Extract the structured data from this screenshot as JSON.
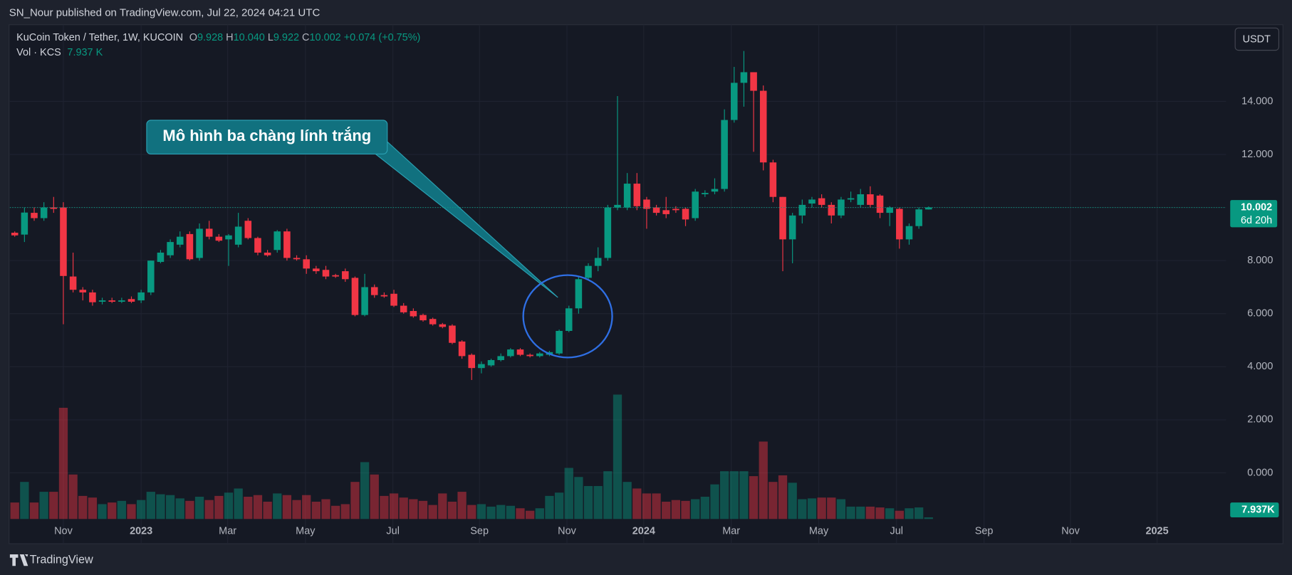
{
  "header": {
    "published": "SN_Nour published on TradingView.com, Jul 22, 2024 04:21 UTC"
  },
  "footer": {
    "brand": "TradingView"
  },
  "legend": {
    "symbol": "KuCoin Token / Tether, 1W, KUCOIN",
    "ohlc": [
      {
        "key": "O",
        "value": "9.928"
      },
      {
        "key": "H",
        "value": "10.040"
      },
      {
        "key": "L",
        "value": "9.922"
      },
      {
        "key": "C",
        "value": "10.002"
      }
    ],
    "change": "+0.074 (+0.75%)",
    "volume_name": "Vol · KCS",
    "volume_value": "7.937 K"
  },
  "currency_button": "USDT",
  "annotation": {
    "text": "Mô hình ba chàng lính trắng"
  },
  "chart_data": {
    "type": "candlestick",
    "up_color": "#089981",
    "down_color": "#f23645",
    "open": [
      9.05,
      8.98,
      9.8,
      9.6,
      10.0,
      10.0,
      7.4,
      6.9,
      6.8,
      6.45,
      6.5,
      6.45,
      6.55,
      6.5,
      6.8,
      7.95,
      8.2,
      8.6,
      9.0,
      8.1,
      9.2,
      8.9,
      8.8,
      8.6,
      9.5,
      8.85,
      8.3,
      8.4,
      9.1,
      8.1,
      8.05,
      7.7,
      7.65,
      7.45,
      7.6,
      7.35,
      5.95,
      7.0,
      6.7,
      6.75,
      6.3,
      6.1,
      5.95,
      5.8,
      5.6,
      5.55,
      4.95,
      4.45,
      3.95,
      4.05,
      4.25,
      4.4,
      4.65,
      4.45,
      4.4,
      4.45,
      4.5,
      5.35,
      6.2,
      7.35,
      7.8,
      8.1,
      10.0,
      10.0,
      10.9,
      10.3,
      10.0,
      9.9,
      9.95,
      9.95,
      9.6,
      10.5,
      10.6,
      10.7,
      13.3,
      14.7,
      15.1,
      14.4,
      11.7,
      10.4,
      8.8,
      9.7,
      10.15,
      10.35,
      10.1,
      9.7,
      10.3,
      10.1,
      10.5,
      10.45,
      9.8,
      9.95,
      8.8,
      9.3,
      9.928
    ],
    "high": [
      9.1,
      10.0,
      10.0,
      10.2,
      10.4,
      10.2,
      8.3,
      7.0,
      6.9,
      6.6,
      6.6,
      6.6,
      6.65,
      6.9,
      8.0,
      8.4,
      8.8,
      9.1,
      9.1,
      9.4,
      9.5,
      9.0,
      9.0,
      9.8,
      9.6,
      8.9,
      8.4,
      9.15,
      9.2,
      8.2,
      8.2,
      7.8,
      7.8,
      7.5,
      7.7,
      7.4,
      7.5,
      7.1,
      6.8,
      6.9,
      6.4,
      6.2,
      6.0,
      5.85,
      5.65,
      5.6,
      5.0,
      4.5,
      4.2,
      4.3,
      4.5,
      4.7,
      4.7,
      4.5,
      4.55,
      4.6,
      5.4,
      6.3,
      7.4,
      7.9,
      8.5,
      10.1,
      14.2,
      11.3,
      11.3,
      10.4,
      10.1,
      10.4,
      10.05,
      10.0,
      10.7,
      10.65,
      11.1,
      13.7,
      15.3,
      15.9,
      15.1,
      14.6,
      11.8,
      10.4,
      9.8,
      10.3,
      10.4,
      10.5,
      10.2,
      10.4,
      10.6,
      10.7,
      10.8,
      10.5,
      10.05,
      10.0,
      9.4,
      10.0,
      10.04
    ],
    "low": [
      8.9,
      8.7,
      9.5,
      9.5,
      9.8,
      5.6,
      6.8,
      6.5,
      6.3,
      6.35,
      6.4,
      6.4,
      6.4,
      6.4,
      6.7,
      7.9,
      8.1,
      8.5,
      8.0,
      8.0,
      8.8,
      8.7,
      7.8,
      8.5,
      8.8,
      8.2,
      8.15,
      8.3,
      8.0,
      8.0,
      7.5,
      7.5,
      7.3,
      7.35,
      7.2,
      5.9,
      5.9,
      6.6,
      6.6,
      6.25,
      6.0,
      5.85,
      5.7,
      5.55,
      5.45,
      4.85,
      4.3,
      3.5,
      3.75,
      4.0,
      4.2,
      4.35,
      4.4,
      4.35,
      4.35,
      4.4,
      4.45,
      5.3,
      6.0,
      7.3,
      7.6,
      8.0,
      9.9,
      9.9,
      9.9,
      9.2,
      9.7,
      9.6,
      9.8,
      9.3,
      9.5,
      10.4,
      10.5,
      10.6,
      13.2,
      13.8,
      12.1,
      11.4,
      10.2,
      7.6,
      7.9,
      9.4,
      10.0,
      10.0,
      9.4,
      9.6,
      10.2,
      10.0,
      10.0,
      9.6,
      9.3,
      8.45,
      8.6,
      9.2,
      9.922
    ],
    "close": [
      8.95,
      9.81,
      9.6,
      10.0,
      9.95,
      7.42,
      6.9,
      6.8,
      6.43,
      6.5,
      6.45,
      6.5,
      6.45,
      6.8,
      8.0,
      8.3,
      8.7,
      8.9,
      8.05,
      9.2,
      8.9,
      8.75,
      8.95,
      9.28,
      8.85,
      8.3,
      8.2,
      9.1,
      8.1,
      8.05,
      7.7,
      7.6,
      7.4,
      7.4,
      7.3,
      5.95,
      7.0,
      6.7,
      6.65,
      6.3,
      6.05,
      5.9,
      5.75,
      5.6,
      5.5,
      4.9,
      4.4,
      3.95,
      4.1,
      4.25,
      4.4,
      4.65,
      4.45,
      4.4,
      4.5,
      4.55,
      5.35,
      6.2,
      7.3,
      7.8,
      8.1,
      10.0,
      10.1,
      10.9,
      10.05,
      9.95,
      9.8,
      9.75,
      9.9,
      9.55,
      10.6,
      10.55,
      10.7,
      13.3,
      14.7,
      15.1,
      14.4,
      11.7,
      10.4,
      8.8,
      9.7,
      10.1,
      10.3,
      10.1,
      9.7,
      10.3,
      10.35,
      10.5,
      10.1,
      9.8,
      10.0,
      8.8,
      9.3,
      9.93,
      10.002
    ],
    "volume": [
      80000,
      180000,
      80000,
      132000,
      132000,
      540000,
      216000,
      112000,
      104000,
      72000,
      80000,
      88000,
      72000,
      92000,
      132000,
      120000,
      116000,
      100000,
      88000,
      108000,
      92000,
      112000,
      128000,
      148000,
      108000,
      116000,
      84000,
      124000,
      116000,
      92000,
      116000,
      84000,
      96000,
      64000,
      72000,
      180000,
      276000,
      216000,
      112000,
      124000,
      104000,
      96000,
      88000,
      68000,
      124000,
      84000,
      132000,
      68000,
      72000,
      60000,
      68000,
      64000,
      52000,
      40000,
      52000,
      112000,
      128000,
      248000,
      204000,
      160000,
      160000,
      232000,
      604000,
      180000,
      148000,
      124000,
      124000,
      84000,
      92000,
      88000,
      96000,
      108000,
      168000,
      232000,
      232000,
      232000,
      208000,
      376000,
      180000,
      212000,
      176000,
      96000,
      100000,
      104000,
      104000,
      96000,
      60000,
      60000,
      60000,
      56000,
      52000,
      40000,
      52000,
      56000,
      7937
    ],
    "volume_last_label": "7.937K",
    "volume_ylim": [
      0,
      1000000
    ],
    "last_price": {
      "value": 10.002,
      "label": "10.002"
    },
    "countdown": "6d 20h",
    "xlim": [
      -0.5,
      124.6
    ],
    "xticks": [
      {
        "value": 5.0,
        "label": "Nov"
      },
      {
        "value": 13.0,
        "label": "2023"
      },
      {
        "value": 21.9,
        "label": "Mar"
      },
      {
        "value": 29.9,
        "label": "May"
      },
      {
        "value": 38.9,
        "label": "Jul"
      },
      {
        "value": 47.8,
        "label": "Sep"
      },
      {
        "value": 56.8,
        "label": "Nov"
      },
      {
        "value": 64.7,
        "label": "2024"
      },
      {
        "value": 73.7,
        "label": "Mar"
      },
      {
        "value": 82.7,
        "label": "May"
      },
      {
        "value": 90.7,
        "label": "Jul"
      },
      {
        "value": 99.7,
        "label": "Sep"
      },
      {
        "value": 108.6,
        "label": "Nov"
      },
      {
        "value": 117.5,
        "label": "2025"
      }
    ],
    "ylim": [
      -2.67,
      16.89
    ],
    "yticks": [
      {
        "value": 0,
        "label": "0.000"
      },
      {
        "value": 2,
        "label": "2.000"
      },
      {
        "value": 4,
        "label": "4.000"
      },
      {
        "value": 6,
        "label": "6.000"
      },
      {
        "value": 8,
        "label": "8.000"
      },
      {
        "value": 10,
        "label": "10.000"
      },
      {
        "value": 12,
        "label": "12.000"
      },
      {
        "value": 14,
        "label": "14.000"
      }
    ],
    "grid": true
  }
}
